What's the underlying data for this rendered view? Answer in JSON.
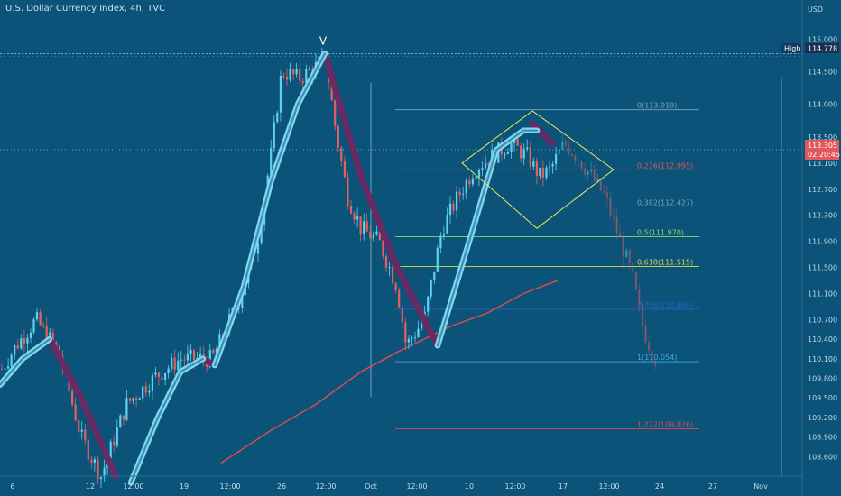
{
  "header": {
    "title": "U.S. Dollar Currency Index, 4h, TVC"
  },
  "colors": {
    "background": "#0b5378",
    "bull": "#5fd0ee",
    "bear": "#e7605e",
    "wave_up": "#7fd9f3",
    "wave_down": "#6a2a63",
    "moving_average": "#d94b50",
    "diamond": "#e8e85a",
    "high_line": "#6fa8c8"
  },
  "marks": {
    "wave_label": "V"
  },
  "price_axis": {
    "currency": "USD",
    "ticks": [
      "115.000",
      "114.500",
      "114.000",
      "113.500",
      "113.100",
      "112.700",
      "112.300",
      "111.900",
      "111.500",
      "111.100",
      "110.700",
      "110.400",
      "110.100",
      "109.800",
      "109.500",
      "109.200",
      "108.900",
      "108.600"
    ],
    "high_tag_label": "High",
    "high_value": "114.778",
    "current_price": "113.305",
    "countdown": "02:20:45"
  },
  "time_axis": {
    "ticks": [
      "6",
      "12",
      "12:00",
      "19",
      "12:00",
      "26",
      "12:00",
      "Oct",
      "12:00",
      "10",
      "12:00",
      "17",
      "12:00",
      "24",
      "27",
      "Nov"
    ]
  },
  "fib_levels": [
    {
      "label": "0(113.919)",
      "value": 113.919,
      "color": "#7aa3bb"
    },
    {
      "label": "0.236(112.995)",
      "value": 112.995,
      "color": "#d95a5a"
    },
    {
      "label": "0.382(112.427)",
      "value": 112.427,
      "color": "#7aa3bb"
    },
    {
      "label": "0.5(111.970)",
      "value": 111.97,
      "color": "#8fd16a"
    },
    {
      "label": "0.618(111.515)",
      "value": 111.515,
      "color": "#d9d94a"
    },
    {
      "label": "0.786(110.860)",
      "value": 110.86,
      "color": "#2c5fc8"
    },
    {
      "label": "1(110.054)",
      "value": 110.054,
      "color": "#3ea6e6"
    },
    {
      "label": "1.272(109.026)",
      "value": 109.026,
      "color": "#d94b50"
    }
  ],
  "chart_data": {
    "type": "candlestick",
    "title": "U.S. Dollar Currency Index, 4h, TVC",
    "ylabel": "USD",
    "ylim": [
      108.3,
      115.6
    ],
    "grid": false,
    "high_marker": 114.778,
    "last_price": 113.305,
    "x_ticks": [
      "6",
      "12",
      "12:00",
      "19",
      "12:00",
      "26",
      "12:00",
      "Oct",
      "12:00",
      "10",
      "12:00",
      "17",
      "12:00",
      "24",
      "27",
      "Nov"
    ],
    "anchor_points": [
      [
        0,
        109.9
      ],
      [
        18,
        110.3
      ],
      [
        40,
        110.7
      ],
      [
        65,
        110.2
      ],
      [
        90,
        108.9
      ],
      [
        112,
        108.3
      ],
      [
        140,
        109.4
      ],
      [
        170,
        109.8
      ],
      [
        200,
        110.1
      ],
      [
        235,
        110.1
      ],
      [
        265,
        111.0
      ],
      [
        285,
        111.9
      ],
      [
        300,
        113.2
      ],
      [
        312,
        114.5
      ],
      [
        333,
        114.4
      ],
      [
        352,
        114.6
      ],
      [
        360,
        114.78
      ],
      [
        372,
        113.6
      ],
      [
        385,
        112.6
      ],
      [
        400,
        112.1
      ],
      [
        420,
        111.9
      ],
      [
        440,
        111.2
      ],
      [
        450,
        110.3
      ],
      [
        470,
        110.7
      ],
      [
        490,
        112.1
      ],
      [
        508,
        112.6
      ],
      [
        525,
        113.0
      ],
      [
        545,
        113.2
      ],
      [
        565,
        113.4
      ],
      [
        585,
        113.2
      ],
      [
        598,
        112.9
      ],
      [
        610,
        113.0
      ],
      [
        625,
        113.4
      ],
      [
        640,
        113.2
      ],
      [
        655,
        112.9
      ],
      [
        670,
        112.6
      ],
      [
        685,
        112.0
      ],
      [
        700,
        111.4
      ],
      [
        712,
        110.6
      ],
      [
        725,
        110.1
      ]
    ],
    "projection_from_x": 618,
    "moving_average": [
      [
        245,
        108.5
      ],
      [
        300,
        109.0
      ],
      [
        350,
        109.4
      ],
      [
        400,
        109.9
      ],
      [
        440,
        110.2
      ],
      [
        470,
        110.4
      ],
      [
        500,
        110.6
      ],
      [
        540,
        110.8
      ],
      [
        580,
        111.1
      ],
      [
        618,
        111.3
      ]
    ],
    "wave_up_segments": [
      [
        [
          0,
          109.7
        ],
        [
          25,
          110.1
        ],
        [
          55,
          110.4
        ]
      ],
      [
        [
          145,
          108.2
        ],
        [
          175,
          109.2
        ],
        [
          200,
          109.9
        ],
        [
          225,
          110.1
        ]
      ],
      [
        [
          238,
          110.0
        ],
        [
          270,
          111.2
        ],
        [
          300,
          112.8
        ],
        [
          330,
          114.0
        ],
        [
          360,
          114.78
        ]
      ],
      [
        [
          485,
          110.3
        ],
        [
          520,
          111.9
        ],
        [
          550,
          113.3
        ],
        [
          580,
          113.6
        ],
        [
          595,
          113.6
        ]
      ]
    ],
    "wave_down_segments": [
      [
        [
          55,
          110.4
        ],
        [
          90,
          109.5
        ],
        [
          128,
          108.3
        ]
      ],
      [
        [
          225,
          110.1
        ],
        [
          238,
          110.0
        ]
      ],
      [
        [
          360,
          114.78
        ],
        [
          400,
          112.9
        ],
        [
          440,
          111.5
        ],
        [
          485,
          110.3
        ]
      ],
      [
        [
          590,
          113.7
        ],
        [
          612,
          113.4
        ]
      ]
    ],
    "diamond": [
      [
        512,
        113.1
      ],
      [
        590,
        113.9
      ],
      [
        680,
        113.0
      ],
      [
        595,
        112.1
      ]
    ]
  }
}
